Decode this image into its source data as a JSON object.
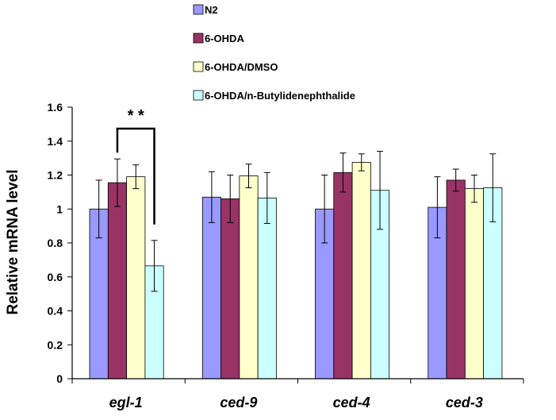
{
  "chart_data": {
    "type": "bar",
    "title": "",
    "xlabel": "",
    "ylabel": "Relative mRNA level",
    "ylim": [
      0,
      1.6
    ],
    "yticks": [
      "0",
      "0.2",
      "0.4",
      "0.6",
      "0.8",
      "1",
      "1.2",
      "1.4",
      "1.6"
    ],
    "categories": [
      "egl-1",
      "ced-9",
      "ced-4",
      "ced-3"
    ],
    "legend_position": "top",
    "series": [
      {
        "name": "N2",
        "color": "#9999ff",
        "values": [
          1.0,
          1.07,
          1.0,
          1.01
        ],
        "errors": [
          0.17,
          0.15,
          0.2,
          0.18
        ]
      },
      {
        "name": "6-OHDA",
        "color": "#993366",
        "values": [
          1.155,
          1.06,
          1.215,
          1.17
        ],
        "errors": [
          0.14,
          0.14,
          0.115,
          0.065
        ]
      },
      {
        "name": "6-OHDA/DMSO",
        "color": "#ffffcc",
        "values": [
          1.19,
          1.195,
          1.275,
          1.12
        ],
        "errors": [
          0.07,
          0.07,
          0.05,
          0.08
        ]
      },
      {
        "name": "6-OHDA/n-Butylidenephthalide",
        "color": "#ccffff",
        "values": [
          0.665,
          1.065,
          1.11,
          1.125
        ],
        "errors": [
          0.15,
          0.15,
          0.23,
          0.2
        ]
      }
    ],
    "annotation": {
      "text": "* *",
      "category": "egl-1",
      "from_series": 1,
      "to_series": 3
    }
  }
}
